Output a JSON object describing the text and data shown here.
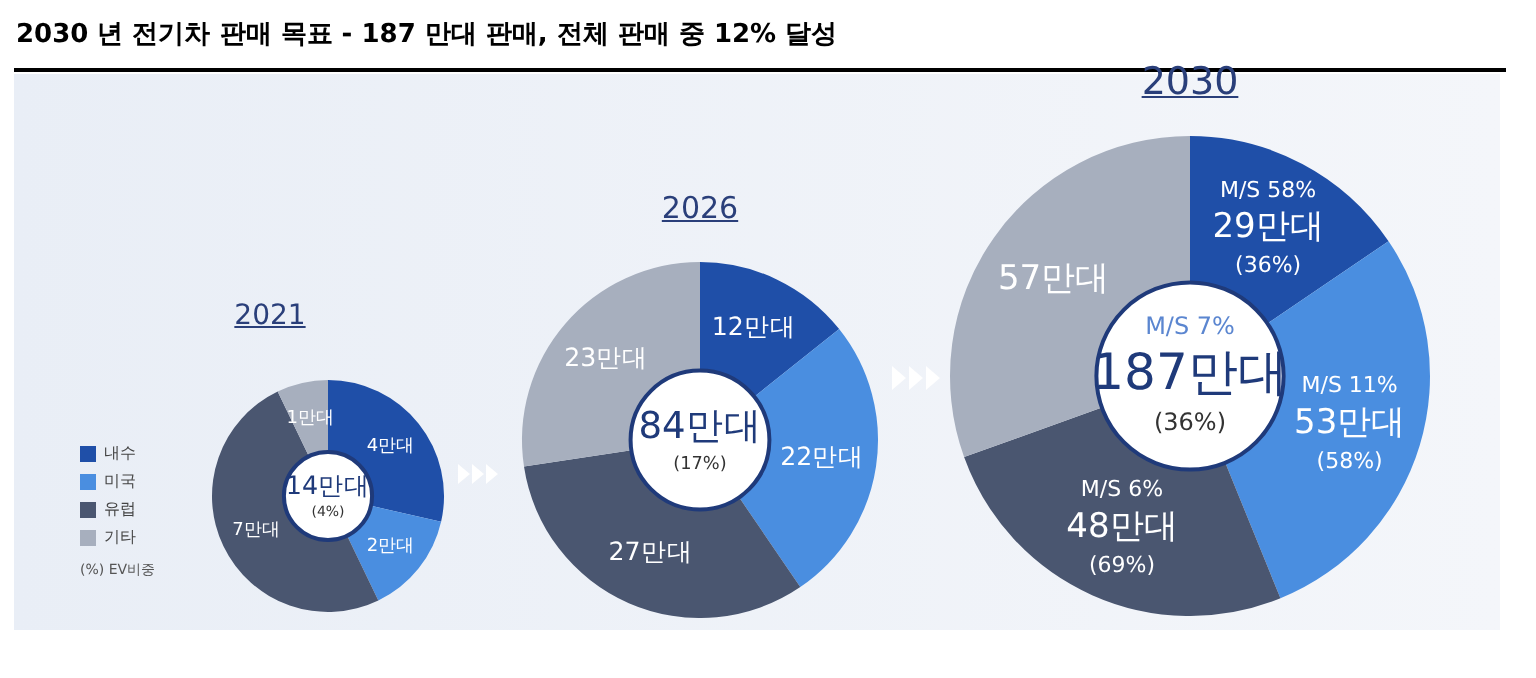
{
  "chart_data": [
    {
      "type": "donut",
      "title": "2030 년 전기차 판매 목표 - 187 만대 판매, 전체 판매 중 12% 달성",
      "subtitle": "2021",
      "categories": [
        "내수",
        "미국",
        "유럽",
        "기타"
      ],
      "values": [
        4,
        2,
        7,
        1
      ],
      "colors": [
        "#1f4fa8",
        "#4a8ee0",
        "#4a5670",
        "#a7afbe"
      ],
      "value_labels": [
        "4만대",
        "2만대",
        "7만대",
        "1만대"
      ],
      "legend": "left",
      "annotations": [
        "14만대\n(4%)",
        "(%) EV비중"
      ]
    },
    {
      "type": "donut",
      "subtitle": "2026",
      "categories": [
        null,
        null,
        null,
        null
      ],
      "values": [
        12,
        22,
        27,
        23
      ],
      "colors": [
        "#1f4fa8",
        "#4a8ee0",
        "#4a5670",
        "#a7afbe"
      ],
      "value_labels": [
        "12만대",
        "22만대",
        "27만대",
        "23만대"
      ],
      "annotations": [
        "84만대\n(17%)"
      ]
    },
    {
      "type": "donut",
      "subtitle": "2030",
      "categories": [
        null,
        null,
        null,
        null
      ],
      "values": [
        29,
        53,
        48,
        57
      ],
      "colors": [
        "#1f4fa8",
        "#4a8ee0",
        "#4a5670",
        "#a7afbe"
      ],
      "value_labels": [
        "M/S 58%\n29만대\n(36%)",
        "M/S 11%\n53만대\n(58%)",
        "M/S 6%\n48만대\n(69%)",
        "57만대"
      ],
      "annotations": [
        "M/S 7%\n187만대\n(36%)"
      ]
    }
  ]
}
